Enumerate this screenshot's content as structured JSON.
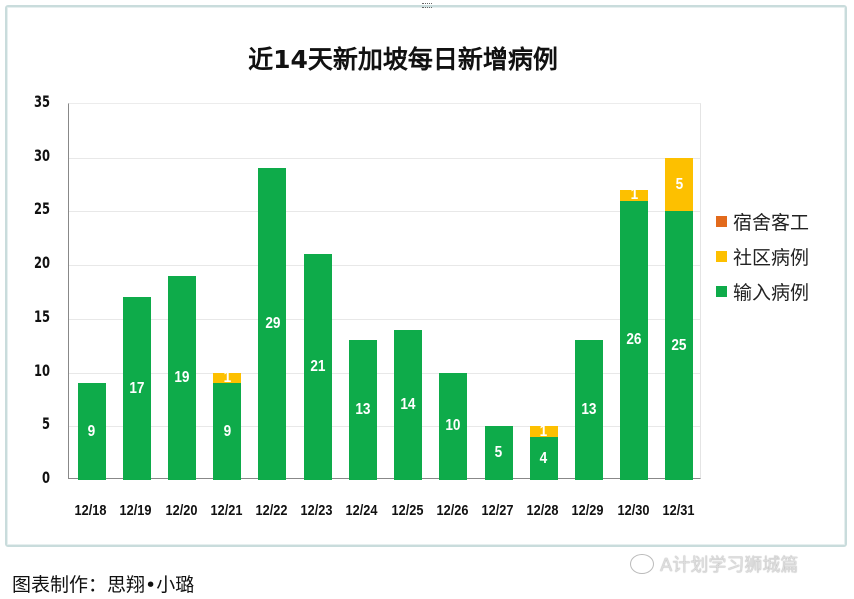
{
  "chart_data": {
    "type": "bar",
    "stacked": true,
    "title": "近14天新加坡每日新增病例",
    "xlabel": "",
    "ylabel": "",
    "ylim": [
      0,
      35
    ],
    "yticks": [
      0,
      5,
      10,
      15,
      20,
      25,
      30,
      35
    ],
    "grid": true,
    "legend_position": "right",
    "categories": [
      "12/18",
      "12/19",
      "12/20",
      "12/21",
      "12/22",
      "12/23",
      "12/24",
      "12/25",
      "12/26",
      "12/27",
      "12/28",
      "12/29",
      "12/30",
      "12/31"
    ],
    "series": [
      {
        "name": "输入病例",
        "color": "#0eab4a",
        "values": [
          9,
          17,
          19,
          9,
          29,
          21,
          13,
          14,
          10,
          5,
          4,
          13,
          26,
          25
        ]
      },
      {
        "name": "社区病例",
        "color": "#fdc000",
        "values": [
          0,
          0,
          0,
          1,
          0,
          0,
          0,
          0,
          0,
          0,
          1,
          0,
          1,
          5
        ]
      },
      {
        "name": "宿舍客工",
        "color": "#e26a1c",
        "values": [
          0,
          0,
          0,
          0,
          0,
          0,
          0,
          0,
          0,
          0,
          0,
          0,
          0,
          0
        ]
      }
    ],
    "legend": [
      "宿舍客工",
      "社区病例",
      "输入病例"
    ]
  },
  "caption": "图表制作：思翔•小璐",
  "watermark": "A计划学习狮城篇"
}
